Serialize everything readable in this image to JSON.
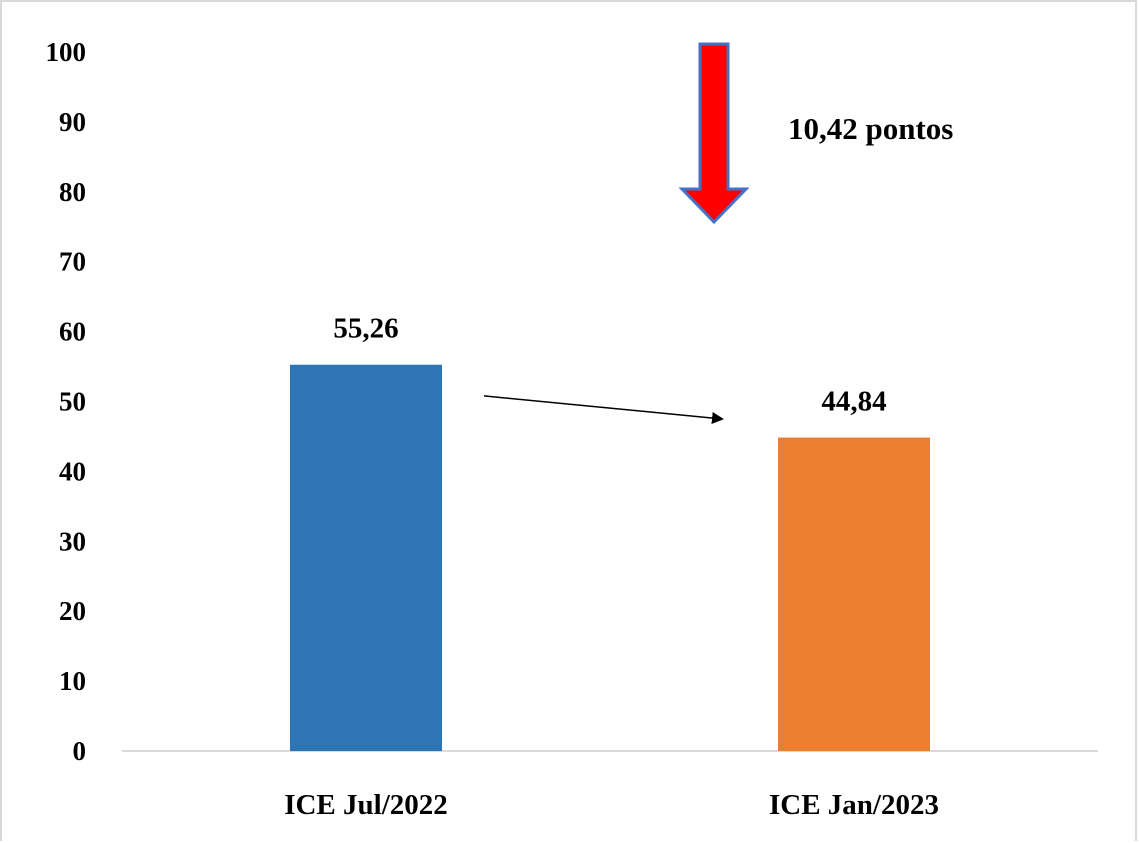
{
  "chart_data": {
    "type": "bar",
    "title": "",
    "xlabel": "",
    "ylabel": "",
    "ylim": [
      0,
      100
    ],
    "yticks": [
      0,
      10,
      20,
      30,
      40,
      50,
      60,
      70,
      80,
      90,
      100
    ],
    "categories": [
      "ICE Jul/2022",
      "ICE Jan/2023"
    ],
    "values": [
      55.26,
      44.84
    ],
    "data_labels": [
      "55,26",
      "44,84"
    ],
    "bar_colors": [
      "#2e75b6",
      "#ed7d31"
    ],
    "grid": false,
    "legend": "none",
    "annotation": {
      "text": "10,42 pontos",
      "arrow_color": "#ff0000",
      "arrow_outline": "#4472c4",
      "arrow_direction": "down"
    }
  }
}
